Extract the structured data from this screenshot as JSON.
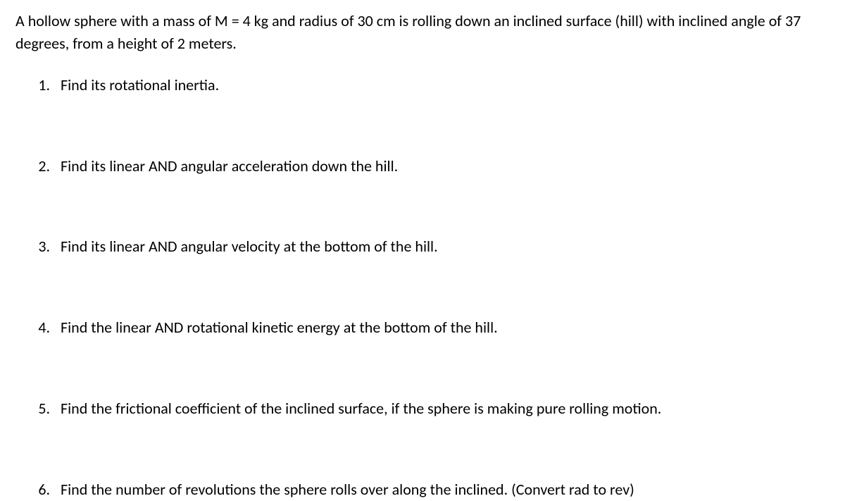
{
  "intro": "A hollow sphere with a mass of M = 4 kg and radius of 30 cm is rolling down an inclined surface (hill) with inclined angle of 37 degrees, from a height of 2 meters.",
  "questions": [
    "Find its rotational inertia.",
    "Find its linear AND angular acceleration down the hill.",
    "Find its linear AND angular velocity at the bottom of the hill.",
    "Find the linear AND rotational kinetic energy at the bottom of the hill.",
    "Find the frictional coefficient of the inclined surface, if the sphere is making pure rolling motion.",
    "Find the number of revolutions the sphere rolls over along the inclined. (Convert rad to rev)"
  ]
}
